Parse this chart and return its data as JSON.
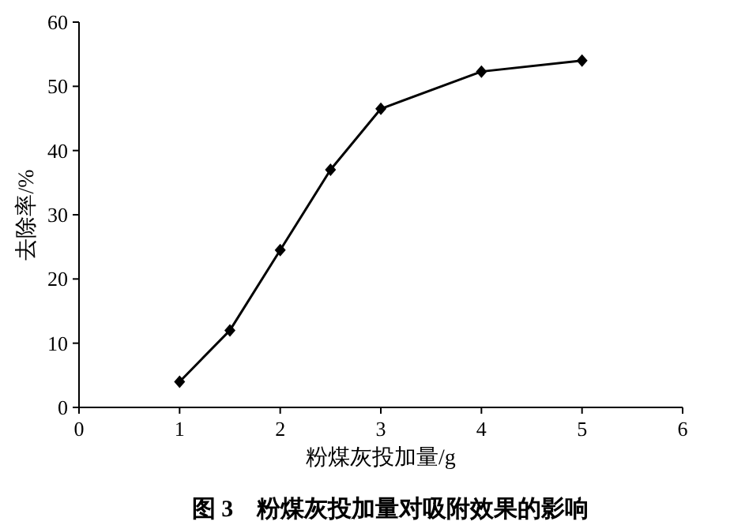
{
  "chart_data": {
    "type": "line",
    "title": "图 3　粉煤灰投加量对吸附效果的影响",
    "xlabel": "粉煤灰投加量/g",
    "ylabel": "去除率/%",
    "x": [
      1,
      1.5,
      2,
      2.5,
      3,
      4,
      5
    ],
    "series": [
      {
        "color": "#000000",
        "values": [
          4,
          12,
          24.5,
          37,
          46.5,
          52.3,
          54
        ]
      }
    ],
    "xlim": [
      0,
      6
    ],
    "xticks": [
      0,
      1,
      2,
      3,
      4,
      5,
      6
    ],
    "ylim": [
      0,
      60
    ],
    "yticks": [
      0,
      10,
      20,
      30,
      40,
      50,
      60
    ],
    "marker": "diamond",
    "line_style": "solid",
    "grid": false
  }
}
